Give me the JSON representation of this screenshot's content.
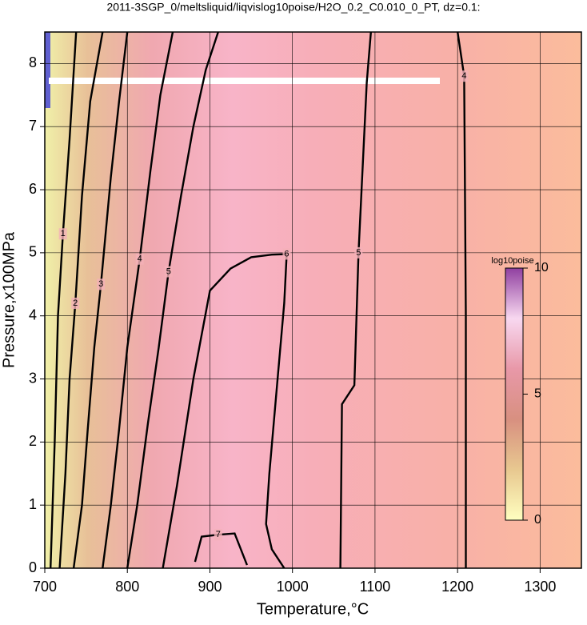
{
  "chart_data": {
    "type": "contour",
    "title": "2011-3SGP_0/meltsliquid/liqvislog10poise/H2O_0.2_C0.010_0_PT, dz=0.1:",
    "x_label": "Temperature,°C",
    "y_label": "Pressure,x100MPa",
    "xlim": [
      700,
      1350
    ],
    "ylim": [
      0,
      8.5
    ],
    "xticks": [
      700,
      800,
      900,
      1000,
      1100,
      1200,
      1300
    ],
    "yticks": [
      0,
      1,
      2,
      3,
      4,
      5,
      6,
      7,
      8
    ],
    "grid": true,
    "colorbar": {
      "label": "log10poise",
      "lim": [
        0,
        10
      ],
      "ticks": [
        0,
        5,
        10
      ],
      "colors": [
        "#ffffc0",
        "#e8c890",
        "#d89080",
        "#e898a8",
        "#f8d8f0",
        "#9040a0"
      ]
    },
    "contours": [
      {
        "level": 1,
        "x": [
          707,
          712,
          716,
          722,
          730,
          738
        ],
        "y": [
          0,
          2,
          4,
          5.3,
          6.8,
          8.5
        ]
      },
      {
        "level": 2,
        "x": [
          718,
          725,
          730,
          737,
          745,
          755,
          770
        ],
        "y": [
          0,
          1.5,
          3,
          4.2,
          5.9,
          7.4,
          8.5
        ]
      },
      {
        "level": 3,
        "x": [
          735,
          745,
          752,
          760,
          768,
          780,
          790,
          800
        ],
        "y": [
          0,
          1,
          2.2,
          3.5,
          4.5,
          6.2,
          7.4,
          8.5
        ]
      },
      {
        "level": 4,
        "x": [
          770,
          780,
          790,
          800,
          815,
          828,
          840,
          855
        ],
        "y": [
          0,
          1,
          2.2,
          3.5,
          4.9,
          6.3,
          7.5,
          8.5
        ]
      },
      {
        "level": 5,
        "x": [
          800,
          812,
          825,
          838,
          850,
          865,
          880,
          895,
          910
        ],
        "y": [
          0,
          1,
          2.3,
          3.5,
          4.7,
          5.9,
          7,
          7.9,
          8.5
        ]
      },
      {
        "level": 6,
        "x": [
          843,
          860,
          880,
          900,
          925,
          950,
          975,
          993,
          990,
          982,
          972,
          968,
          975,
          990
        ],
        "y": [
          0,
          1.3,
          3.0,
          4.4,
          4.75,
          4.93,
          4.97,
          4.98,
          4.2,
          3.0,
          1.5,
          0.7,
          0.3,
          0
        ]
      },
      {
        "level": 7,
        "x": [
          882,
          890,
          910,
          930,
          945
        ],
        "y": [
          0.1,
          0.5,
          0.53,
          0.55,
          0.05
        ]
      },
      {
        "level": 5,
        "x": [
          1058,
          1060,
          1075,
          1080,
          1090,
          1095
        ],
        "y": [
          0,
          2.6,
          2.9,
          5,
          7.7,
          8.5
        ]
      },
      {
        "level": 4,
        "x": [
          1210,
          1210,
          1208,
          1200
        ],
        "y": [
          0,
          4,
          7.8,
          8.5
        ]
      }
    ]
  }
}
